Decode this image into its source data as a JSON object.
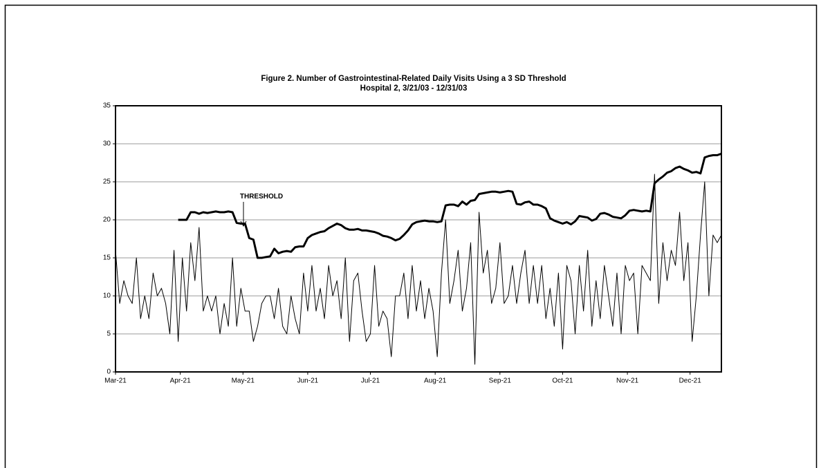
{
  "chart_data": {
    "type": "line",
    "title": "Figure 2. Number of Gastrointestinal-Related Daily Visits Using a 3 SD Threshold",
    "subtitle": "Hospital 2, 3/21/03 - 12/31/03",
    "annotation": "THRESHOLD",
    "x": [
      0,
      2,
      4,
      6,
      8,
      10,
      12,
      14,
      16,
      18,
      20,
      22,
      24,
      26,
      28,
      30,
      32,
      34,
      36,
      38,
      40,
      42,
      44,
      46,
      48,
      50,
      52,
      54,
      56,
      58,
      60,
      62,
      64,
      66,
      68,
      70,
      72,
      74,
      76,
      78,
      80,
      82,
      84,
      86,
      88,
      90,
      92,
      94,
      96,
      98,
      100,
      102,
      104,
      106,
      108,
      110,
      112,
      114,
      116,
      118,
      120,
      122,
      124,
      126,
      128,
      130,
      132,
      134,
      136,
      138,
      140,
      142,
      144,
      146,
      148,
      150,
      152,
      154,
      156,
      158,
      160,
      162,
      164,
      166,
      168,
      170,
      172,
      174,
      176,
      178,
      180,
      182,
      184,
      186,
      188,
      190,
      192,
      194,
      196,
      198,
      200,
      202,
      204,
      206,
      208,
      210,
      212,
      214,
      216,
      218,
      220,
      222,
      224,
      226,
      228,
      230,
      232,
      234,
      236,
      238,
      240,
      242,
      244,
      246,
      248,
      250,
      252,
      254,
      256,
      258,
      260,
      262,
      264,
      266,
      268,
      270,
      272,
      274,
      276,
      278,
      280,
      282,
      284,
      286,
      288,
      290
    ],
    "series": [
      {
        "color": "#000000",
        "line_width": 1,
        "values": [
          16,
          9,
          12,
          10,
          9,
          15,
          7,
          10,
          7,
          13,
          10,
          11,
          9,
          5,
          16,
          4,
          15,
          8,
          17,
          12,
          19,
          8,
          10,
          8,
          10,
          5,
          9,
          6,
          15,
          6,
          11,
          8,
          8,
          4,
          6,
          9,
          10,
          10,
          7,
          11,
          6,
          5,
          10,
          7,
          5,
          13,
          8,
          14,
          8,
          11,
          7,
          14,
          10,
          12,
          7,
          15,
          4,
          12,
          13,
          8,
          4,
          5,
          14,
          6,
          8,
          7,
          2,
          10,
          10,
          13,
          7,
          14,
          8,
          12,
          7,
          11,
          8,
          2,
          13,
          20,
          9,
          12,
          16,
          8,
          11,
          17,
          1,
          21,
          13,
          16,
          9,
          11,
          17,
          9,
          10,
          14,
          9,
          13,
          16,
          9,
          14,
          9,
          14,
          7,
          11,
          6,
          13,
          3,
          14,
          12,
          5,
          14,
          8,
          16,
          6,
          12,
          7,
          14,
          10,
          6,
          13,
          5,
          14,
          12,
          13,
          5,
          14,
          13,
          12,
          26,
          9,
          17,
          12,
          16,
          14,
          21,
          12,
          17,
          4,
          10,
          18,
          25,
          10,
          18,
          17,
          18
        ]
      },
      {
        "color": "#000000",
        "line_width": 3,
        "values": [
          null,
          null,
          null,
          null,
          null,
          null,
          null,
          null,
          null,
          null,
          null,
          null,
          null,
          null,
          null,
          20,
          20,
          20,
          21,
          21,
          20.8,
          21,
          20.9,
          21,
          21.1,
          21,
          21,
          21.1,
          21,
          19.6,
          19.5,
          19.5,
          17.6,
          17.4,
          15,
          15,
          15.1,
          15.2,
          16.2,
          15.6,
          15.8,
          15.9,
          15.8,
          16.4,
          16.5,
          16.5,
          17.6,
          18,
          18.2,
          18.4,
          18.5,
          18.9,
          19.2,
          19.5,
          19.3,
          18.9,
          18.7,
          18.7,
          18.8,
          18.6,
          18.6,
          18.5,
          18.4,
          18.2,
          17.9,
          17.8,
          17.6,
          17.3,
          17.5,
          18,
          18.6,
          19.4,
          19.7,
          19.8,
          19.9,
          19.8,
          19.8,
          19.7,
          19.8,
          21.9,
          22,
          22,
          21.8,
          22.4,
          22,
          22.5,
          22.6,
          23.4,
          23.5,
          23.6,
          23.7,
          23.7,
          23.6,
          23.7,
          23.8,
          23.7,
          22.1,
          22,
          22.3,
          22.4,
          22,
          22,
          21.8,
          21.5,
          20.2,
          19.9,
          19.7,
          19.5,
          19.7,
          19.4,
          19.8,
          20.5,
          20.4,
          20.3,
          19.9,
          20.1,
          20.8,
          20.9,
          20.7,
          20.4,
          20.3,
          20.2,
          20.6,
          21.2,
          21.3,
          21.2,
          21.1,
          21.2,
          21.1,
          24.8,
          25.3,
          25.7,
          26.2,
          26.4,
          26.8,
          27,
          26.7,
          26.5,
          26.2,
          26.3,
          26.1,
          28.2,
          28.4,
          28.5,
          28.5,
          28.7
        ]
      }
    ],
    "xlim": [
      0,
      290
    ],
    "xticks": [
      {
        "value": 0,
        "label": "Mar-21"
      },
      {
        "value": 31,
        "label": "Apr-21"
      },
      {
        "value": 61,
        "label": "May-21"
      },
      {
        "value": 92,
        "label": "Jun-21"
      },
      {
        "value": 122,
        "label": "Jul-21"
      },
      {
        "value": 153,
        "label": "Aug-21"
      },
      {
        "value": 184,
        "label": "Sep-21"
      },
      {
        "value": 214,
        "label": "Oct-21"
      },
      {
        "value": 245,
        "label": "Nov-21"
      },
      {
        "value": 275,
        "label": "Dec-21"
      }
    ],
    "ylim": [
      0,
      35
    ],
    "yticks": [
      0,
      5,
      10,
      15,
      20,
      25,
      30,
      35
    ],
    "grid": true
  }
}
